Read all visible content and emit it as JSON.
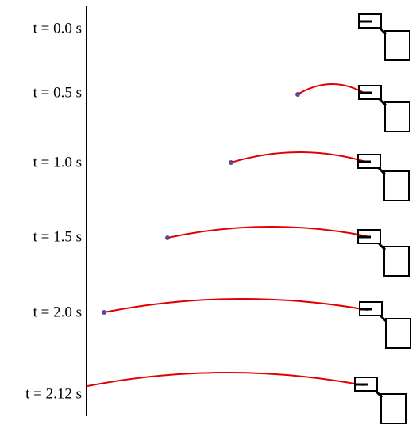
{
  "labels": [
    "t = 0.0 s",
    "t = 0.5 s",
    "t = 1.0 s",
    "t = 1.5 s",
    "t = 2.0 s",
    "t = 2.12 s"
  ]
}
